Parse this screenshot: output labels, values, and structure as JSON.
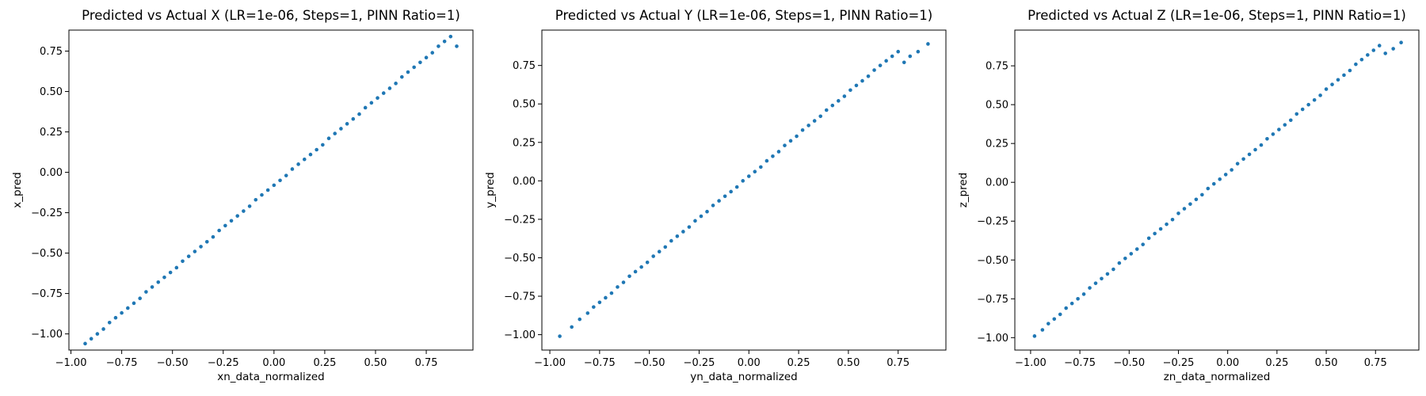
{
  "chart_data": [
    {
      "type": "scatter",
      "title": "Predicted vs Actual X (LR=1e-06, Steps=1, PINN Ratio=1)",
      "xlabel": "xn_data_normalized",
      "ylabel": "x_pred",
      "xlim": [
        -1.01,
        0.98
      ],
      "ylim": [
        -1.1,
        0.88
      ],
      "xticks": [
        -1.0,
        -0.75,
        -0.5,
        -0.25,
        0.0,
        0.25,
        0.5,
        0.75
      ],
      "yticks": [
        -1.0,
        -0.75,
        -0.5,
        -0.25,
        0.0,
        0.25,
        0.5,
        0.75
      ],
      "xtick_labels": [
        "−1.00",
        "−0.75",
        "−0.50",
        "−0.25",
        "0.00",
        "0.25",
        "0.50",
        "0.75"
      ],
      "ytick_labels": [
        "−1.00",
        "−0.75",
        "−0.50",
        "−0.25",
        "0.00",
        "0.25",
        "0.50",
        "0.75"
      ],
      "grid": false,
      "color": "#1f77b4",
      "x": [
        -0.93,
        -0.9,
        -0.87,
        -0.84,
        -0.81,
        -0.78,
        -0.75,
        -0.72,
        -0.69,
        -0.66,
        -0.63,
        -0.6,
        -0.57,
        -0.54,
        -0.51,
        -0.48,
        -0.45,
        -0.42,
        -0.39,
        -0.36,
        -0.33,
        -0.3,
        -0.27,
        -0.24,
        -0.21,
        -0.18,
        -0.15,
        -0.12,
        -0.09,
        -0.06,
        -0.03,
        0.0,
        0.03,
        0.06,
        0.09,
        0.12,
        0.15,
        0.18,
        0.21,
        0.24,
        0.27,
        0.3,
        0.33,
        0.36,
        0.39,
        0.42,
        0.45,
        0.48,
        0.51,
        0.54,
        0.57,
        0.6,
        0.63,
        0.66,
        0.69,
        0.72,
        0.75,
        0.78,
        0.81,
        0.84,
        0.87,
        0.9
      ],
      "y": [
        -1.06,
        -1.03,
        -1.0,
        -0.97,
        -0.93,
        -0.9,
        -0.87,
        -0.84,
        -0.81,
        -0.78,
        -0.74,
        -0.71,
        -0.68,
        -0.65,
        -0.62,
        -0.59,
        -0.55,
        -0.52,
        -0.49,
        -0.46,
        -0.43,
        -0.4,
        -0.36,
        -0.33,
        -0.3,
        -0.27,
        -0.24,
        -0.21,
        -0.17,
        -0.14,
        -0.11,
        -0.08,
        -0.05,
        -0.02,
        0.02,
        0.05,
        0.08,
        0.11,
        0.14,
        0.17,
        0.21,
        0.24,
        0.27,
        0.3,
        0.33,
        0.36,
        0.4,
        0.43,
        0.46,
        0.49,
        0.52,
        0.55,
        0.59,
        0.62,
        0.65,
        0.68,
        0.71,
        0.74,
        0.78,
        0.81,
        0.84,
        0.78
      ]
    },
    {
      "type": "scatter",
      "title": "Predicted vs Actual Y (LR=1e-06, Steps=1, PINN Ratio=1)",
      "xlabel": "yn_data_normalized",
      "ylabel": "y_pred",
      "xlim": [
        -1.04,
        0.99
      ],
      "ylim": [
        -1.1,
        0.98
      ],
      "xticks": [
        -1.0,
        -0.75,
        -0.5,
        -0.25,
        0.0,
        0.25,
        0.5,
        0.75
      ],
      "yticks": [
        -1.0,
        -0.75,
        -0.5,
        -0.25,
        0.0,
        0.25,
        0.5,
        0.75
      ],
      "xtick_labels": [
        "−1.00",
        "−0.75",
        "−0.50",
        "−0.25",
        "0.00",
        "0.25",
        "0.50",
        "0.75"
      ],
      "ytick_labels": [
        "−1.00",
        "−0.75",
        "−0.50",
        "−0.25",
        "0.00",
        "0.25",
        "0.50",
        "0.75"
      ],
      "grid": false,
      "color": "#1f77b4",
      "x": [
        -0.95,
        -0.89,
        -0.85,
        -0.81,
        -0.78,
        -0.75,
        -0.72,
        -0.69,
        -0.66,
        -0.63,
        -0.6,
        -0.57,
        -0.54,
        -0.51,
        -0.48,
        -0.45,
        -0.42,
        -0.39,
        -0.36,
        -0.33,
        -0.3,
        -0.27,
        -0.24,
        -0.21,
        -0.18,
        -0.15,
        -0.12,
        -0.09,
        -0.06,
        -0.03,
        0.0,
        0.03,
        0.06,
        0.09,
        0.12,
        0.15,
        0.18,
        0.21,
        0.24,
        0.27,
        0.3,
        0.33,
        0.36,
        0.39,
        0.42,
        0.45,
        0.48,
        0.51,
        0.54,
        0.57,
        0.6,
        0.63,
        0.66,
        0.69,
        0.72,
        0.75,
        0.78,
        0.81,
        0.85,
        0.9
      ],
      "y": [
        -1.01,
        -0.95,
        -0.9,
        -0.86,
        -0.82,
        -0.79,
        -0.76,
        -0.73,
        -0.69,
        -0.66,
        -0.62,
        -0.59,
        -0.56,
        -0.53,
        -0.49,
        -0.46,
        -0.43,
        -0.39,
        -0.36,
        -0.33,
        -0.3,
        -0.26,
        -0.23,
        -0.2,
        -0.16,
        -0.13,
        -0.1,
        -0.07,
        -0.04,
        0.0,
        0.03,
        0.06,
        0.09,
        0.13,
        0.16,
        0.19,
        0.23,
        0.26,
        0.29,
        0.33,
        0.36,
        0.39,
        0.42,
        0.46,
        0.49,
        0.52,
        0.55,
        0.59,
        0.62,
        0.65,
        0.68,
        0.72,
        0.75,
        0.78,
        0.81,
        0.84,
        0.77,
        0.81,
        0.84,
        0.89
      ]
    },
    {
      "type": "scatter",
      "title": "Predicted vs Actual Z (LR=1e-06, Steps=1, PINN Ratio=1)",
      "xlabel": "zn_data_normalized",
      "ylabel": "z_pred",
      "xlim": [
        -1.08,
        0.97
      ],
      "ylim": [
        -1.08,
        0.98
      ],
      "xticks": [
        -1.0,
        -0.75,
        -0.5,
        -0.25,
        0.0,
        0.25,
        0.5,
        0.75
      ],
      "yticks": [
        -1.0,
        -0.75,
        -0.5,
        -0.25,
        0.0,
        0.25,
        0.5,
        0.75
      ],
      "xtick_labels": [
        "−1.00",
        "−0.75",
        "−0.50",
        "−0.25",
        "0.00",
        "0.25",
        "0.50",
        "0.75"
      ],
      "ytick_labels": [
        "−1.00",
        "−0.75",
        "−0.50",
        "−0.25",
        "0.00",
        "0.25",
        "0.50",
        "0.75"
      ],
      "grid": false,
      "color": "#1f77b4",
      "x": [
        -0.98,
        -0.94,
        -0.91,
        -0.88,
        -0.85,
        -0.82,
        -0.79,
        -0.76,
        -0.73,
        -0.7,
        -0.67,
        -0.64,
        -0.61,
        -0.58,
        -0.55,
        -0.52,
        -0.49,
        -0.46,
        -0.43,
        -0.4,
        -0.37,
        -0.34,
        -0.31,
        -0.28,
        -0.25,
        -0.22,
        -0.19,
        -0.16,
        -0.13,
        -0.1,
        -0.07,
        -0.04,
        -0.01,
        0.02,
        0.05,
        0.08,
        0.11,
        0.14,
        0.17,
        0.2,
        0.23,
        0.26,
        0.29,
        0.32,
        0.35,
        0.38,
        0.41,
        0.44,
        0.47,
        0.5,
        0.53,
        0.56,
        0.59,
        0.62,
        0.65,
        0.68,
        0.71,
        0.74,
        0.77,
        0.8,
        0.84,
        0.88
      ],
      "y": [
        -0.99,
        -0.95,
        -0.91,
        -0.88,
        -0.85,
        -0.81,
        -0.78,
        -0.75,
        -0.72,
        -0.68,
        -0.65,
        -0.62,
        -0.59,
        -0.56,
        -0.52,
        -0.49,
        -0.46,
        -0.43,
        -0.4,
        -0.36,
        -0.33,
        -0.3,
        -0.27,
        -0.24,
        -0.2,
        -0.17,
        -0.14,
        -0.11,
        -0.08,
        -0.04,
        -0.01,
        0.02,
        0.05,
        0.08,
        0.12,
        0.15,
        0.18,
        0.21,
        0.24,
        0.28,
        0.31,
        0.34,
        0.37,
        0.4,
        0.44,
        0.47,
        0.5,
        0.53,
        0.56,
        0.6,
        0.63,
        0.66,
        0.69,
        0.72,
        0.76,
        0.79,
        0.82,
        0.85,
        0.88,
        0.83,
        0.86,
        0.9
      ]
    }
  ]
}
